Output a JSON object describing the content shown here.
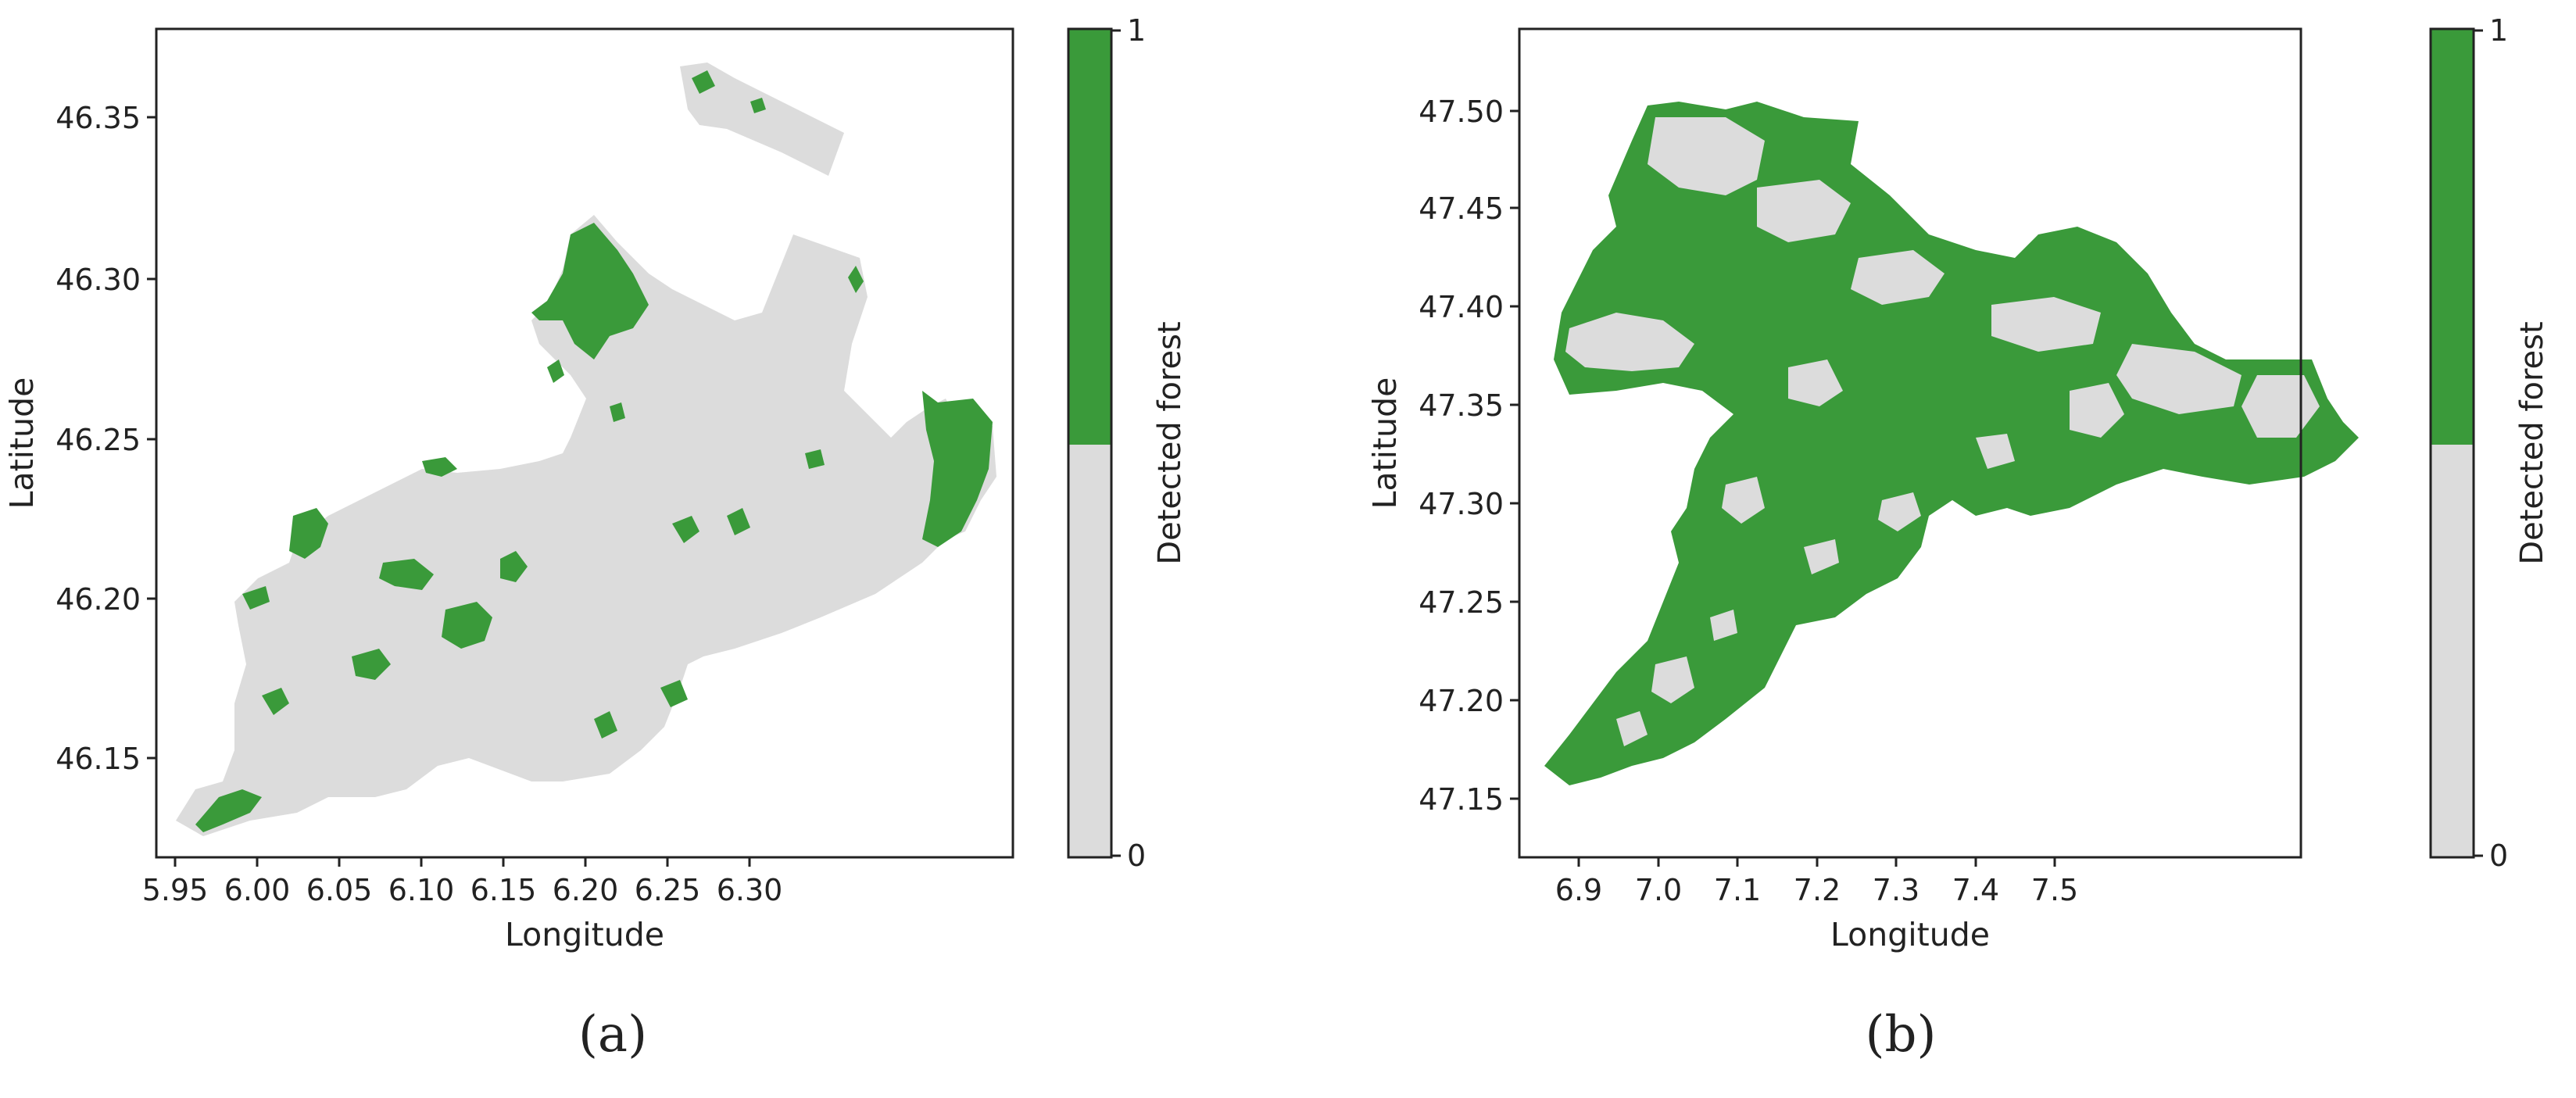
{
  "figure": {
    "panels": [
      {
        "caption": "(a)",
        "xlabel": "Longitude",
        "ylabel": "Latitude",
        "xticks": [
          "5.95",
          "6.00",
          "6.05",
          "6.10",
          "6.15",
          "6.20",
          "6.25",
          "6.30"
        ],
        "yticks": [
          "46.15",
          "46.20",
          "46.25",
          "46.30",
          "46.35"
        ],
        "colorbar": {
          "label": "Detected forest",
          "max": "1",
          "min": "0"
        }
      },
      {
        "caption": "(b)",
        "xlabel": "Longitude",
        "ylabel": "Latitude",
        "xticks": [
          "6.9",
          "7.0",
          "7.1",
          "7.2",
          "7.3",
          "7.4",
          "7.5"
        ],
        "yticks": [
          "47.15",
          "47.20",
          "47.25",
          "47.30",
          "47.35",
          "47.40",
          "47.45",
          "47.50"
        ],
        "colorbar": {
          "label": "Detected forest",
          "max": "1",
          "min": "0"
        }
      }
    ],
    "colors": {
      "forest": "#3a9a3a",
      "non_forest": "#dcdcdc",
      "axes": "#222222"
    }
  }
}
